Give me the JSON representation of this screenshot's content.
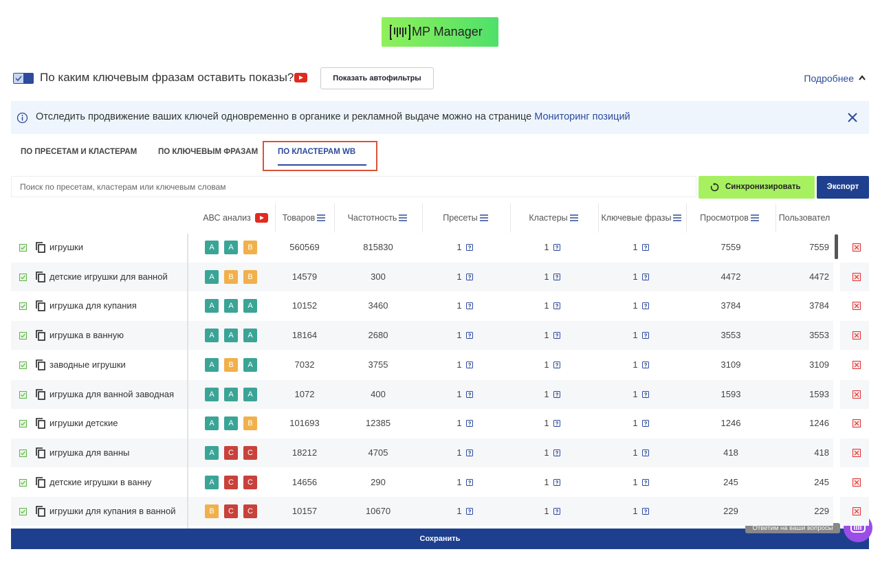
{
  "logo": "MP Manager",
  "header": {
    "title": "По каким ключевым фразам оставить показы?",
    "button": "Показать автофильтры",
    "more": "Подробнее"
  },
  "notice": {
    "text": "Отследить продвижение ваших ключей одновременно в органике и рекламной выдаче можно на странице",
    "link": "Мониторинг позиций"
  },
  "tabs": [
    "ПО ПРЕСЕТАМ И КЛАСТЕРАМ",
    "ПО КЛЮЧЕВЫМ ФРАЗАМ",
    "ПО КЛАСТЕРАМ WB"
  ],
  "active_tab": 2,
  "search_placeholder": "Поиск по пресетам, кластерам или ключевым словам",
  "sync_button": "Синхронизировать",
  "export_button": "Экспорт",
  "columns": [
    "АВС анализ",
    "Товаров",
    "Частотность",
    "Пресеты",
    "Кластеры",
    "Ключевые фразы",
    "Просмотров",
    "Пользовател"
  ],
  "rows": [
    {
      "phrase": "игрушки",
      "abc": [
        "A",
        "A",
        "B"
      ],
      "products": 560569,
      "frequency": 815830,
      "presets": 1,
      "clusters": 1,
      "phrases": 1,
      "views": 7559,
      "users": 7559
    },
    {
      "phrase": "детские игрушки для ванной",
      "abc": [
        "A",
        "B",
        "B"
      ],
      "products": 14579,
      "frequency": 300,
      "presets": 1,
      "clusters": 1,
      "phrases": 1,
      "views": 4472,
      "users": 4472
    },
    {
      "phrase": "игрушка для купания",
      "abc": [
        "A",
        "A",
        "A"
      ],
      "products": 10152,
      "frequency": 3460,
      "presets": 1,
      "clusters": 1,
      "phrases": 1,
      "views": 3784,
      "users": 3784
    },
    {
      "phrase": "игрушка в ванную",
      "abc": [
        "A",
        "A",
        "A"
      ],
      "products": 18164,
      "frequency": 2680,
      "presets": 1,
      "clusters": 1,
      "phrases": 1,
      "views": 3553,
      "users": 3553
    },
    {
      "phrase": "заводные игрушки",
      "abc": [
        "A",
        "B",
        "A"
      ],
      "products": 7032,
      "frequency": 3755,
      "presets": 1,
      "clusters": 1,
      "phrases": 1,
      "views": 3109,
      "users": 3109
    },
    {
      "phrase": "игрушка для ванной заводная",
      "abc": [
        "A",
        "A",
        "A"
      ],
      "products": 1072,
      "frequency": 400,
      "presets": 1,
      "clusters": 1,
      "phrases": 1,
      "views": 1593,
      "users": 1593
    },
    {
      "phrase": "игрушки детские",
      "abc": [
        "A",
        "A",
        "B"
      ],
      "products": 101693,
      "frequency": 12385,
      "presets": 1,
      "clusters": 1,
      "phrases": 1,
      "views": 1246,
      "users": 1246
    },
    {
      "phrase": "игрушка для ванны",
      "abc": [
        "A",
        "C",
        "C"
      ],
      "products": 18212,
      "frequency": 4705,
      "presets": 1,
      "clusters": 1,
      "phrases": 1,
      "views": 418,
      "users": 418
    },
    {
      "phrase": "детские игрушки в ванну",
      "abc": [
        "A",
        "C",
        "C"
      ],
      "products": 14656,
      "frequency": 290,
      "presets": 1,
      "clusters": 1,
      "phrases": 1,
      "views": 245,
      "users": 245
    },
    {
      "phrase": "игрушки для купания в ванной",
      "abc": [
        "B",
        "C",
        "C"
      ],
      "products": 10157,
      "frequency": 10670,
      "presets": 1,
      "clusters": 1,
      "phrases": 1,
      "views": 229,
      "users": 229
    }
  ],
  "save_button": "Сохранить",
  "help_text": "Ответим на ваши вопросы"
}
